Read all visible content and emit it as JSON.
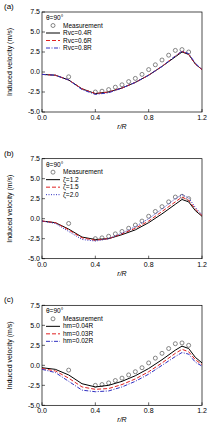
{
  "chart_data": [
    {
      "type": "line",
      "title": "(a)",
      "annotation": "θ=90°",
      "x_label": "r/R",
      "y_label": "Induced velocity (m/s)",
      "xlim": [
        0,
        1.2
      ],
      "ylim": [
        -5,
        7.5
      ],
      "xticks": [
        {
          "value": 0,
          "label": "0.0"
        },
        {
          "value": 0.4,
          "label": "0.4"
        },
        {
          "value": 0.8,
          "label": "0.8"
        },
        {
          "value": 1.2,
          "label": "1.2"
        }
      ],
      "yticks": [
        {
          "value": -5,
          "label": "-5.0"
        },
        -2.5,
        {
          "value": 0,
          "label": "0.0"
        },
        2.5,
        {
          "value": 5,
          "label": "5.0"
        },
        7.5
      ],
      "series": [
        {
          "name": "Measurement",
          "type": "scatter",
          "marker": "circle",
          "color": "#555555",
          "x": [
            0.2,
            0.4,
            0.45,
            0.5,
            0.55,
            0.6,
            0.65,
            0.7,
            0.75,
            0.8,
            0.85,
            0.9,
            0.95,
            1.0,
            1.05,
            1.1
          ],
          "values": [
            -0.6,
            -2.5,
            -2.4,
            -2.2,
            -1.9,
            -1.6,
            -1.2,
            -0.8,
            -0.3,
            0.3,
            0.9,
            1.5,
            2.1,
            2.7,
            2.8,
            2.5
          ]
        },
        {
          "name": "Rvc=0.4R",
          "line_style": "solid",
          "color": "#000000",
          "x": [
            0,
            0.1,
            0.2,
            0.3,
            0.4,
            0.5,
            0.6,
            0.7,
            0.8,
            0.9,
            1.0,
            1.05,
            1.1,
            1.15,
            1.2
          ],
          "values": [
            -0.3,
            -0.4,
            -1.0,
            -2.1,
            -2.7,
            -2.5,
            -2.0,
            -1.3,
            -0.4,
            0.7,
            1.9,
            2.5,
            2.2,
            1.0,
            0.3
          ]
        },
        {
          "name": "Rvc=0.6R",
          "line_style": "dashed",
          "color": "#e02020",
          "x": [
            0,
            0.1,
            0.2,
            0.3,
            0.4,
            0.5,
            0.6,
            0.7,
            0.8,
            0.9,
            1.0,
            1.05,
            1.1,
            1.15,
            1.2
          ],
          "values": [
            -0.3,
            -0.4,
            -1.0,
            -2.1,
            -2.7,
            -2.5,
            -2.0,
            -1.3,
            -0.4,
            0.7,
            2.0,
            2.6,
            2.2,
            1.0,
            0.3
          ]
        },
        {
          "name": "Rvc=0.8R",
          "line_style": "dashdot",
          "color": "#3030c0",
          "x": [
            0,
            0.1,
            0.2,
            0.3,
            0.4,
            0.5,
            0.6,
            0.7,
            0.8,
            0.9,
            1.0,
            1.05,
            1.1,
            1.15,
            1.2
          ],
          "values": [
            -0.3,
            -0.4,
            -1.0,
            -2.2,
            -2.8,
            -2.6,
            -2.0,
            -1.3,
            -0.4,
            0.7,
            2.0,
            2.6,
            2.3,
            1.1,
            0.3
          ]
        }
      ]
    },
    {
      "type": "line",
      "title": "(b)",
      "annotation": "θ=90°",
      "x_label": "r/R",
      "y_label": "Induced velocity (m/s)",
      "xlim": [
        0,
        1.2
      ],
      "ylim": [
        -5,
        7.5
      ],
      "xticks": [
        {
          "value": 0,
          "label": "0.0"
        },
        {
          "value": 0.4,
          "label": "0.4"
        },
        {
          "value": 0.8,
          "label": "0.8"
        },
        {
          "value": 1.2,
          "label": "1.2"
        }
      ],
      "yticks": [
        {
          "value": -5,
          "label": "-5.0"
        },
        -2.5,
        {
          "value": 0,
          "label": "0.0"
        },
        2.5,
        {
          "value": 5,
          "label": "5.0"
        },
        7.5
      ],
      "series": [
        {
          "name": "Measurement",
          "type": "scatter",
          "marker": "circle",
          "color": "#555555",
          "x": [
            0.2,
            0.4,
            0.45,
            0.5,
            0.55,
            0.6,
            0.65,
            0.7,
            0.75,
            0.8,
            0.85,
            0.9,
            0.95,
            1.0,
            1.05,
            1.1
          ],
          "values": [
            -0.6,
            -2.5,
            -2.4,
            -2.2,
            -1.9,
            -1.6,
            -1.2,
            -0.8,
            -0.3,
            0.3,
            0.9,
            1.5,
            2.1,
            2.7,
            2.8,
            2.5
          ]
        },
        {
          "name": "ζ=1.2",
          "line_style": "solid",
          "color": "#000000",
          "x": [
            0,
            0.1,
            0.2,
            0.3,
            0.4,
            0.5,
            0.6,
            0.7,
            0.8,
            0.9,
            1.0,
            1.05,
            1.1,
            1.15,
            1.2
          ],
          "values": [
            -0.3,
            -0.5,
            -1.3,
            -2.3,
            -2.6,
            -2.5,
            -2.0,
            -1.4,
            -0.5,
            0.6,
            1.8,
            2.4,
            2.1,
            1.0,
            0.3
          ]
        },
        {
          "name": "ζ=1.5",
          "line_style": "dashed",
          "color": "#e02020",
          "x": [
            0,
            0.1,
            0.2,
            0.3,
            0.4,
            0.5,
            0.6,
            0.7,
            0.8,
            0.9,
            1.0,
            1.05,
            1.1,
            1.15,
            1.2
          ],
          "values": [
            -0.3,
            -0.5,
            -1.4,
            -2.4,
            -2.7,
            -2.5,
            -1.9,
            -1.2,
            -0.3,
            0.9,
            2.1,
            2.7,
            2.3,
            1.2,
            0.4
          ]
        },
        {
          "name": "ζ=2.0",
          "line_style": "dotted",
          "color": "#3030c0",
          "x": [
            0,
            0.1,
            0.2,
            0.3,
            0.4,
            0.5,
            0.6,
            0.7,
            0.8,
            0.9,
            1.0,
            1.05,
            1.1,
            1.15,
            1.2
          ],
          "values": [
            -0.3,
            -0.6,
            -1.6,
            -2.6,
            -2.8,
            -2.5,
            -1.8,
            -1.0,
            0.0,
            1.2,
            2.5,
            3.0,
            2.6,
            1.4,
            0.5
          ]
        }
      ]
    },
    {
      "type": "line",
      "title": "(c)",
      "annotation": "θ=90°",
      "x_label": "r/R",
      "y_label": "Induced velocity (m/s)",
      "xlim": [
        0,
        1.2
      ],
      "ylim": [
        -5,
        7.5
      ],
      "xticks": [
        {
          "value": 0,
          "label": "0.0"
        },
        {
          "value": 0.4,
          "label": "0.4"
        },
        {
          "value": 0.8,
          "label": "0.8"
        },
        {
          "value": 1.2,
          "label": "1.2"
        }
      ],
      "yticks": [
        {
          "value": -5,
          "label": "-5.0"
        },
        -2.5,
        {
          "value": 0,
          "label": "0.0"
        },
        2.5,
        {
          "value": 5,
          "label": "5.0"
        },
        7.5
      ],
      "series": [
        {
          "name": "Measurement",
          "type": "scatter",
          "marker": "circle",
          "color": "#555555",
          "x": [
            0.2,
            0.4,
            0.45,
            0.5,
            0.55,
            0.6,
            0.65,
            0.7,
            0.75,
            0.8,
            0.85,
            0.9,
            0.95,
            1.0,
            1.05,
            1.1
          ],
          "values": [
            -0.6,
            -2.5,
            -2.4,
            -2.2,
            -1.9,
            -1.6,
            -1.2,
            -0.8,
            -0.3,
            0.3,
            0.9,
            1.5,
            2.1,
            2.7,
            2.8,
            2.5
          ]
        },
        {
          "name": "hm=0.04R",
          "line_style": "solid",
          "color": "#000000",
          "x": [
            0,
            0.1,
            0.2,
            0.3,
            0.4,
            0.5,
            0.6,
            0.7,
            0.8,
            0.9,
            1.0,
            1.05,
            1.1,
            1.15,
            1.2
          ],
          "values": [
            -0.3,
            -0.5,
            -1.2,
            -2.3,
            -2.7,
            -2.5,
            -2.0,
            -1.3,
            -0.4,
            0.7,
            1.9,
            2.4,
            2.1,
            1.0,
            0.3
          ]
        },
        {
          "name": "hm=0.03R",
          "line_style": "dashed",
          "color": "#e02020",
          "x": [
            0,
            0.1,
            0.2,
            0.3,
            0.4,
            0.5,
            0.6,
            0.7,
            0.8,
            0.9,
            1.0,
            1.05,
            1.1,
            1.15,
            1.2
          ],
          "values": [
            -0.4,
            -0.7,
            -1.6,
            -2.7,
            -3.0,
            -2.9,
            -2.4,
            -1.7,
            -0.8,
            0.3,
            1.5,
            2.0,
            1.7,
            0.7,
            0.1
          ]
        },
        {
          "name": "hm=0.02R",
          "line_style": "dashdot",
          "color": "#3030c0",
          "x": [
            0,
            0.1,
            0.2,
            0.3,
            0.4,
            0.5,
            0.6,
            0.7,
            0.8,
            0.9,
            1.0,
            1.05,
            1.1,
            1.15,
            1.2
          ],
          "values": [
            -0.5,
            -0.9,
            -2.0,
            -3.1,
            -3.3,
            -3.2,
            -2.7,
            -2.0,
            -1.1,
            0.0,
            1.1,
            1.6,
            1.4,
            0.4,
            -0.1
          ]
        }
      ]
    }
  ]
}
